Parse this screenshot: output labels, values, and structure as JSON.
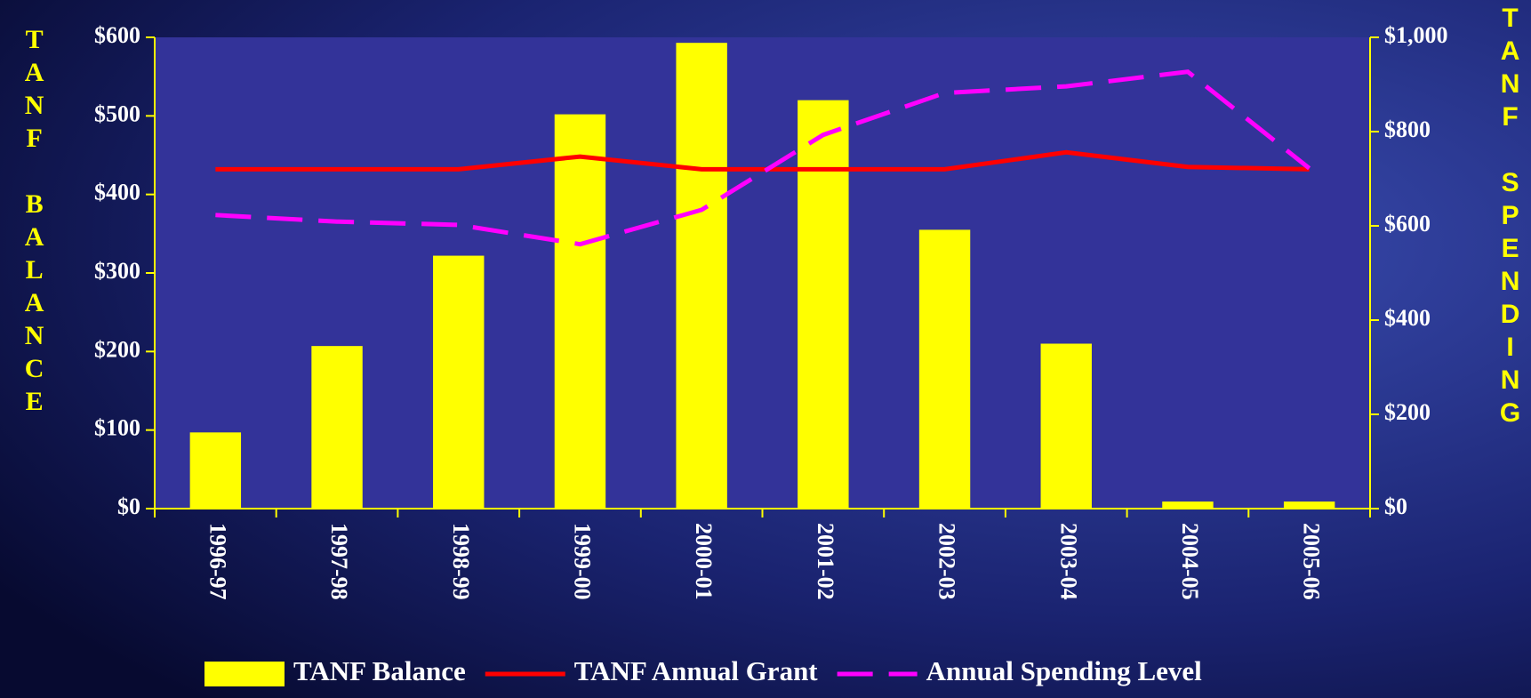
{
  "chart_data": {
    "type": "bar_line",
    "y_label": "TANF BALANCE",
    "y2_label": "TANF SPENDING",
    "categories": [
      "1996-97",
      "1997-98",
      "1998-99",
      "1999-00",
      "2000-01",
      "2001-02",
      "2002-03",
      "2003-04",
      "2004-05",
      "2005-06"
    ],
    "series": [
      {
        "name": "TANF Balance",
        "type": "bar",
        "color": "#ffff00",
        "values": [
          97,
          207,
          322,
          502,
          593,
          520,
          355,
          210,
          9,
          9
        ]
      },
      {
        "name": "TANF Annual Grant",
        "type": "line",
        "axis": "y2",
        "color": "#ff0000",
        "dashed": false,
        "values": [
          720,
          720,
          720,
          747,
          720,
          720,
          720,
          756,
          725,
          720
        ]
      },
      {
        "name": "Annual Spending Level",
        "type": "line",
        "axis": "y2",
        "color": "#ff00ff",
        "dashed": true,
        "values": [
          623,
          609,
          602,
          561,
          634,
          793,
          882,
          896,
          927,
          722
        ]
      }
    ],
    "ylim": [
      0,
      600
    ],
    "yticks": [
      {
        "value": 0,
        "label": "$0"
      },
      {
        "value": 100,
        "label": "$100"
      },
      {
        "value": 200,
        "label": "$200"
      },
      {
        "value": 300,
        "label": "$300"
      },
      {
        "value": 400,
        "label": "$400"
      },
      {
        "value": 500,
        "label": "$500"
      },
      {
        "value": 600,
        "label": "$600"
      }
    ],
    "y2lim": [
      0,
      1000
    ],
    "y2ticks": [
      {
        "value": 0,
        "label": "$0"
      },
      {
        "value": 200,
        "label": "$200"
      },
      {
        "value": 400,
        "label": "$400"
      },
      {
        "value": 600,
        "label": "$600"
      },
      {
        "value": 800,
        "label": "$800"
      },
      {
        "value": 1000,
        "label": "$1,000"
      }
    ]
  }
}
